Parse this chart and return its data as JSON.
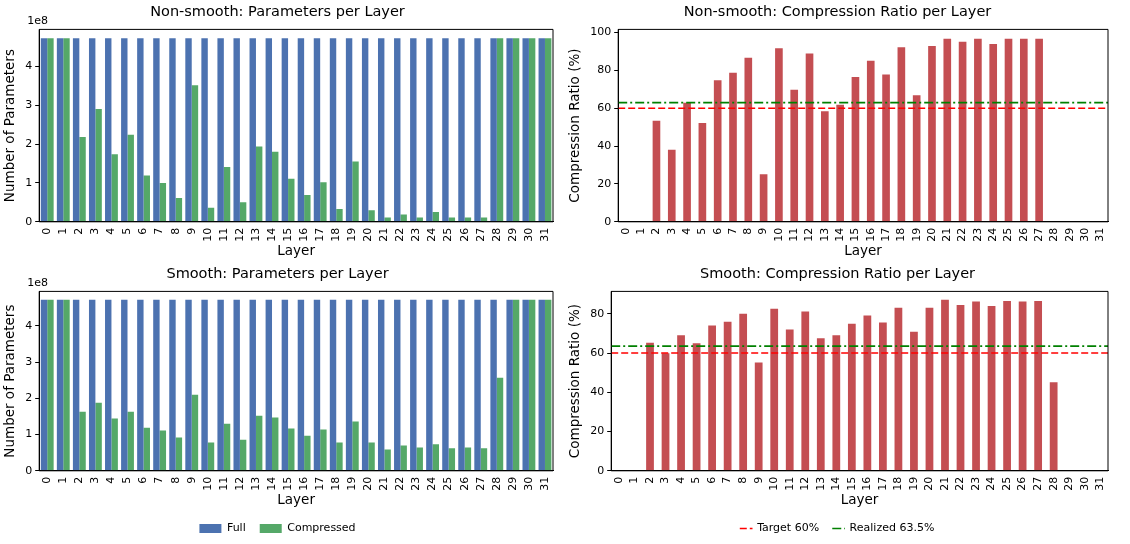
{
  "chart_data": [
    {
      "type": "bar",
      "title": "Non-smooth: Parameters per Layer",
      "xlabel": "Layer",
      "ylabel": "Number of Parameters",
      "annotations": [
        "1e8"
      ],
      "categories": [
        "0",
        "1",
        "2",
        "3",
        "4",
        "5",
        "6",
        "7",
        "8",
        "9",
        "10",
        "11",
        "12",
        "13",
        "14",
        "15",
        "16",
        "17",
        "18",
        "19",
        "20",
        "21",
        "22",
        "23",
        "24",
        "25",
        "26",
        "27",
        "28",
        "29",
        "30",
        "31"
      ],
      "series": [
        {
          "color": "#4c72b0",
          "values": [
            4.72,
            4.72,
            4.72,
            4.72,
            4.72,
            4.72,
            4.72,
            4.72,
            4.72,
            4.72,
            4.72,
            4.72,
            4.72,
            4.72,
            4.72,
            4.72,
            4.72,
            4.72,
            4.72,
            4.72,
            4.72,
            4.72,
            4.72,
            4.72,
            4.72,
            4.72,
            4.72,
            4.72,
            4.72,
            4.72,
            4.72,
            4.72
          ]
        },
        {
          "color": "#55a868",
          "values": [
            4.72,
            4.72,
            2.18,
            2.9,
            1.74,
            2.24,
            1.19,
            1.0,
            0.61,
            3.51,
            0.36,
            1.41,
            0.5,
            1.94,
            1.8,
            1.11,
            0.69,
            1.02,
            0.33,
            1.55,
            0.3,
            0.11,
            0.19,
            0.11,
            0.25,
            0.11,
            0.11,
            0.11,
            4.72,
            4.72,
            4.72,
            4.72
          ]
        }
      ],
      "ylim": [
        0,
        4.95
      ],
      "yticks": [
        0,
        1,
        2,
        3,
        4
      ]
    },
    {
      "type": "bar",
      "title": "Non-smooth: Compression Ratio per Layer",
      "xlabel": "Layer",
      "ylabel": "Compression Ratio (%)",
      "categories": [
        "0",
        "1",
        "2",
        "3",
        "4",
        "5",
        "6",
        "7",
        "8",
        "9",
        "10",
        "11",
        "12",
        "13",
        "14",
        "15",
        "16",
        "17",
        "18",
        "19",
        "20",
        "21",
        "22",
        "23",
        "24",
        "25",
        "26",
        "27",
        "28",
        "29",
        "30",
        "31"
      ],
      "color": "#c44e52",
      "values": [
        0,
        0,
        53.4,
        38.1,
        62.9,
        52.2,
        74.8,
        78.8,
        86.7,
        25.2,
        91.7,
        69.8,
        88.9,
        58.5,
        61.9,
        76.6,
        85.1,
        77.8,
        92.3,
        66.9,
        92.9,
        96.8,
        95.2,
        96.8,
        94.0,
        96.8,
        96.8,
        96.8,
        0,
        0,
        0,
        0
      ],
      "ylim": [
        0,
        101.7
      ],
      "yticks": [
        0,
        20,
        40,
        60,
        80,
        100
      ],
      "ref_lines": [
        {
          "axis": "y",
          "value": 60,
          "color": "#ff0000",
          "line_style": "dashed"
        },
        {
          "axis": "y",
          "value": 63,
          "color": "#008000",
          "line_style": "dashdot"
        }
      ]
    },
    {
      "type": "bar",
      "title": "Smooth: Parameters per Layer",
      "xlabel": "Layer",
      "ylabel": "Number of Parameters",
      "annotations": [
        "1e8"
      ],
      "legend": "bottom",
      "categories": [
        "0",
        "1",
        "2",
        "3",
        "4",
        "5",
        "6",
        "7",
        "8",
        "9",
        "10",
        "11",
        "12",
        "13",
        "14",
        "15",
        "16",
        "17",
        "18",
        "19",
        "20",
        "21",
        "22",
        "23",
        "24",
        "25",
        "26",
        "27",
        "28",
        "29",
        "30",
        "31"
      ],
      "series": [
        {
          "name": "Full",
          "color": "#4c72b0",
          "values": [
            4.72,
            4.72,
            4.72,
            4.72,
            4.72,
            4.72,
            4.72,
            4.72,
            4.72,
            4.72,
            4.72,
            4.72,
            4.72,
            4.72,
            4.72,
            4.72,
            4.72,
            4.72,
            4.72,
            4.72,
            4.72,
            4.72,
            4.72,
            4.72,
            4.72,
            4.72,
            4.72,
            4.72,
            4.72,
            4.72,
            4.72,
            4.72
          ]
        },
        {
          "name": "Compressed",
          "color": "#55a868",
          "values": [
            4.72,
            4.72,
            1.63,
            1.88,
            1.44,
            1.63,
            1.19,
            1.11,
            0.92,
            2.1,
            0.78,
            1.3,
            0.86,
            1.52,
            1.47,
            1.17,
            0.97,
            1.14,
            0.78,
            1.36,
            0.78,
            0.59,
            0.7,
            0.64,
            0.73,
            0.62,
            0.64,
            0.62,
            2.57,
            4.72,
            4.72,
            4.72
          ]
        }
      ],
      "ylim": [
        0,
        4.95
      ],
      "yticks": [
        0,
        1,
        2,
        3,
        4
      ]
    },
    {
      "type": "bar",
      "title": "Smooth: Compression Ratio per Layer",
      "xlabel": "Layer",
      "ylabel": "Compression Ratio (%)",
      "legend": "bottom",
      "categories": [
        "0",
        "1",
        "2",
        "3",
        "4",
        "5",
        "6",
        "7",
        "8",
        "9",
        "10",
        "11",
        "12",
        "13",
        "14",
        "15",
        "16",
        "17",
        "18",
        "19",
        "20",
        "21",
        "22",
        "23",
        "24",
        "25",
        "26",
        "27",
        "28",
        "29",
        "30",
        "31"
      ],
      "color": "#c44e52",
      "values": [
        0,
        0,
        65.3,
        59.9,
        69.0,
        65.0,
        74.0,
        76.0,
        80.0,
        55.2,
        82.5,
        72.0,
        81.1,
        67.5,
        69.0,
        74.9,
        79.1,
        75.5,
        83.1,
        70.9,
        83.1,
        87.1,
        84.5,
        86.2,
        84.0,
        86.5,
        86.2,
        86.5,
        45.1,
        0,
        0,
        0
      ],
      "ylim": [
        0,
        91.4
      ],
      "yticks": [
        0,
        20,
        40,
        60,
        80
      ],
      "ref_lines": [
        {
          "axis": "y",
          "value": 60,
          "label": "Target 60%",
          "color": "#ff0000",
          "line_style": "dashed"
        },
        {
          "axis": "y",
          "value": 63.5,
          "label": "Realized 63.5%",
          "color": "#008000",
          "line_style": "dashdot"
        }
      ]
    }
  ]
}
